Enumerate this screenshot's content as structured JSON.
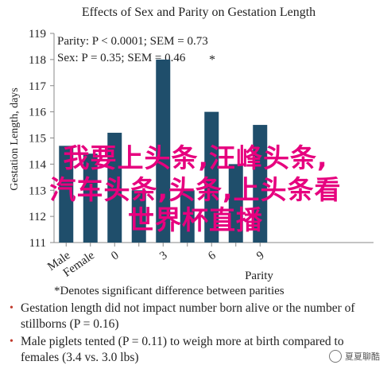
{
  "chart_data": {
    "type": "bar",
    "title": "Effects of Sex and Parity on Gestation Length",
    "ylabel": "Gestation Length, days",
    "xlabel": "Parity",
    "ylim": [
      111,
      119
    ],
    "yticks": [
      111,
      112,
      113,
      114,
      115,
      116,
      117,
      118,
      119
    ],
    "categories": [
      "Male",
      "Female",
      "0",
      "3",
      "6",
      "9"
    ],
    "values": [
      114.7,
      114.4,
      115.2,
      118.0,
      116.0,
      115.5
    ],
    "extra_bars": [
      {
        "after": "0",
        "value": 113.0
      },
      {
        "after": "3",
        "value": 113.0
      },
      {
        "after": "6",
        "value": 114.0
      }
    ],
    "annotations": {
      "parity": "Parity: P < 0.0001; SEM = 0.73",
      "sex": "Sex: P = 0.35; SEM = 0.46",
      "star": "*"
    },
    "footnote": "*Denotes significant difference between parities",
    "bar_color": "#1f4e6b",
    "grid": false
  },
  "bullets": [
    "Gestation length did not impact number born alive or the number of stillborns (P = 0.16)",
    "Male piglets tented (P = 0.11) to weigh more at birth compared to females (3.4 vs. 3.0 lbs)"
  ],
  "overlay_text": [
    "我要上头条,汪峰头条,",
    "汽车头条,头条,上头条看",
    "世界杯直播"
  ],
  "watermark": "夏夏聊酷"
}
